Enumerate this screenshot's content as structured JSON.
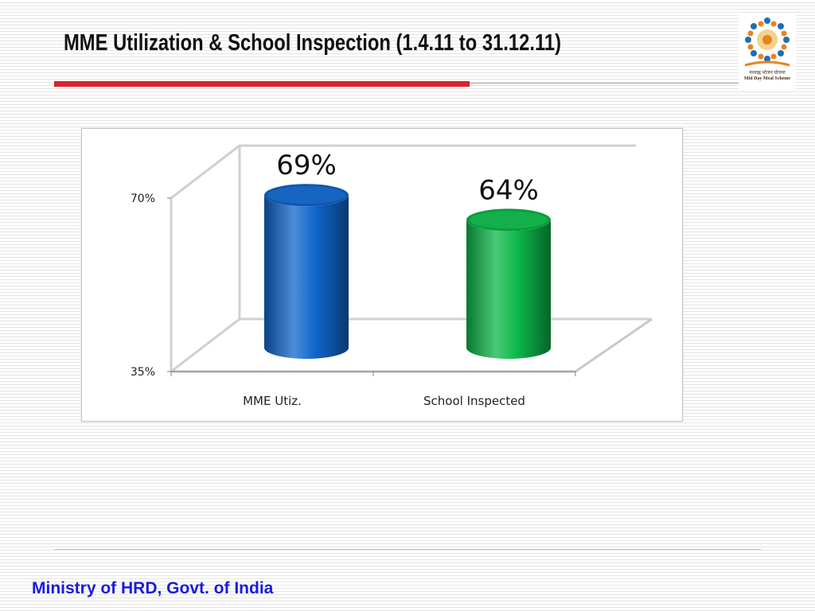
{
  "slide": {
    "title": "MME Utilization  & School Inspection (1.4.11 to 31.12.11)",
    "footer": "Ministry of HRD, Govt. of India"
  },
  "logo": {
    "caption_hindi": "मध्याह्न भोजन योजना",
    "caption_english": "Mid Day Meal Scheme"
  },
  "colors": {
    "title_rule": "#d9232d",
    "footer_text": "#1a1ae0",
    "bar_blue": "#1166cc",
    "bar_green": "#0db84a"
  },
  "chart_data": {
    "type": "bar",
    "style": "3d-cylinder",
    "categories": [
      "MME Utiz.",
      "School Inspected"
    ],
    "values": [
      69,
      64
    ],
    "data_labels": [
      "69%",
      "64%"
    ],
    "colors": [
      "#1166cc",
      "#0db84a"
    ],
    "yticks": [
      "70%",
      "35%"
    ],
    "ylim": [
      35,
      70
    ],
    "grid": false,
    "legend": "none"
  }
}
